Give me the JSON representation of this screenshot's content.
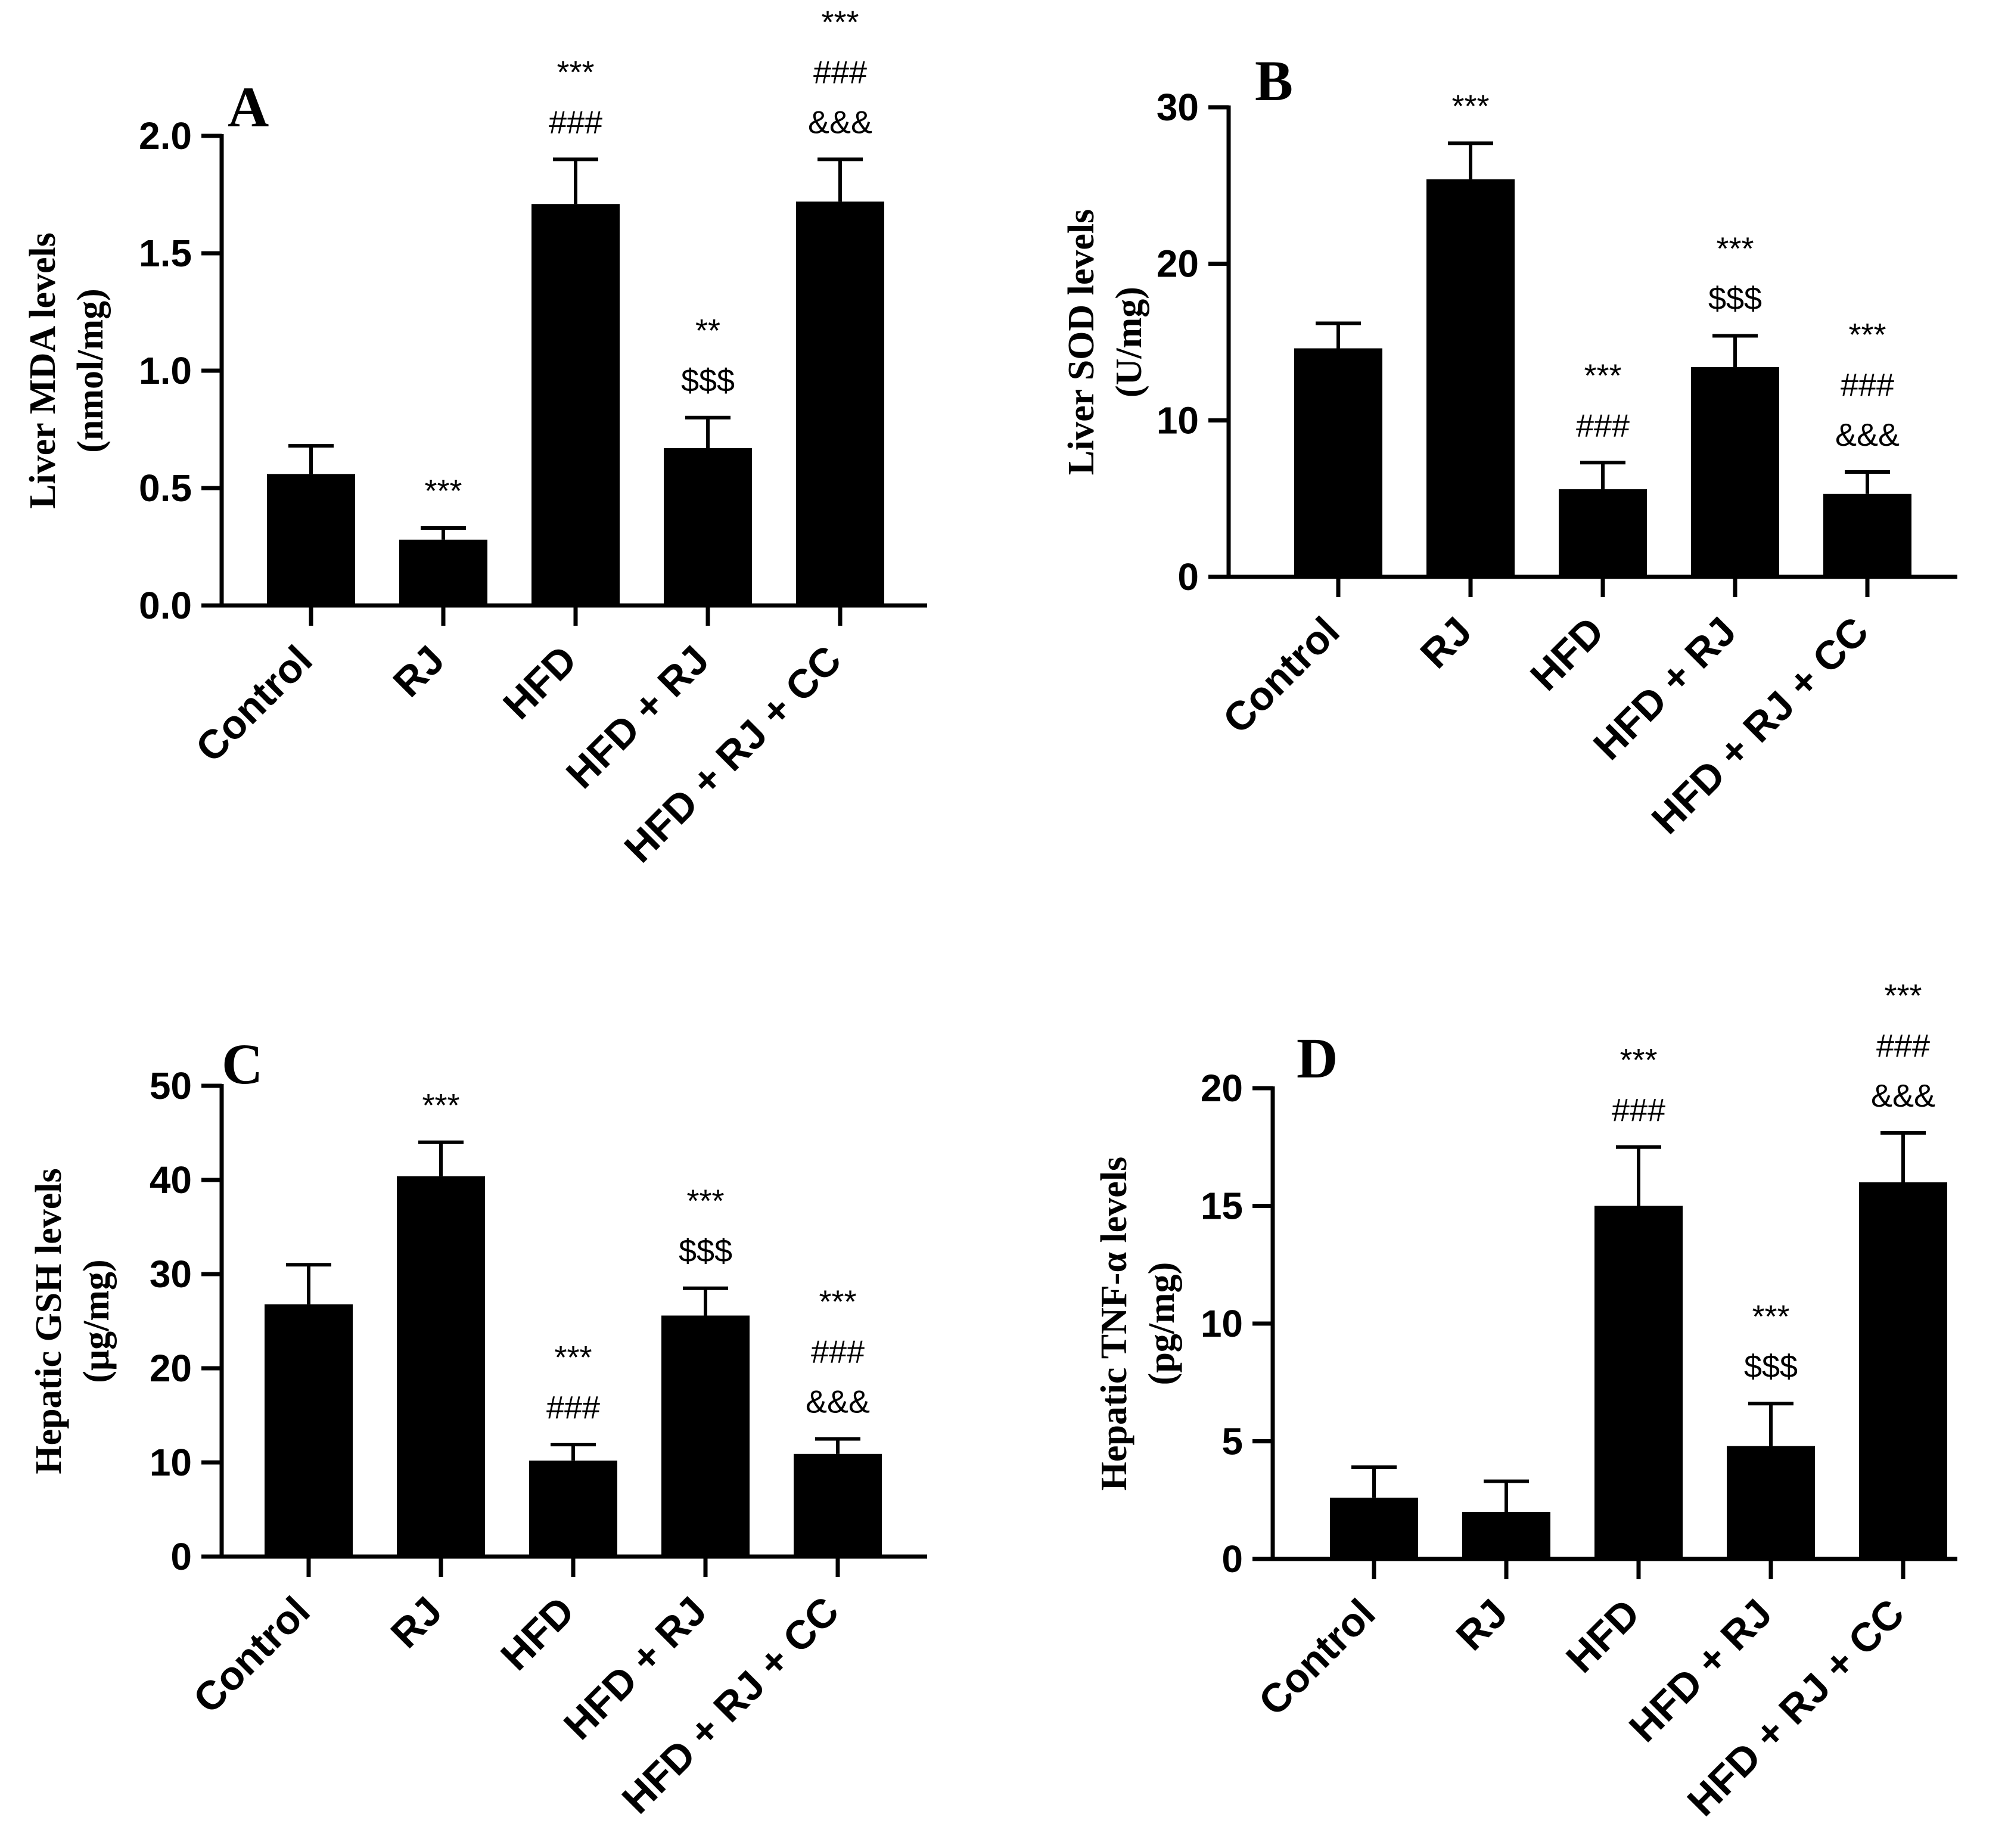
{
  "figure_label": "Four-panel bar chart figure",
  "chart_data": [
    {
      "panel": "A",
      "type": "bar",
      "categories": [
        "Control",
        "RJ",
        "HFD",
        "HFD + RJ",
        "HFD + RJ + CC"
      ],
      "values": [
        0.56,
        0.28,
        1.71,
        0.67,
        1.72
      ],
      "errors": [
        0.12,
        0.05,
        0.19,
        0.13,
        0.18
      ],
      "annotations": [
        [],
        [
          "***"
        ],
        [
          "***",
          "###"
        ],
        [
          "**",
          "$$$"
        ],
        [
          "***",
          "###",
          "&&&"
        ]
      ],
      "ylabel_lines": [
        "Liver MDA levels",
        "(nmol/mg)"
      ],
      "ylim": [
        0,
        2.0
      ],
      "yticks": [
        0.0,
        0.5,
        1.0,
        1.5,
        2.0
      ],
      "ytick_labels": [
        "0.0",
        "0.5",
        "1.0",
        "1.5",
        "2.0"
      ],
      "bar_color": "#000000"
    },
    {
      "panel": "B",
      "type": "bar",
      "categories": [
        "Control",
        "RJ",
        "HFD",
        "HFD + RJ",
        "HFD + RJ + CC"
      ],
      "values": [
        14.6,
        25.4,
        5.6,
        13.4,
        5.3
      ],
      "errors": [
        1.6,
        2.3,
        1.7,
        2.0,
        1.4
      ],
      "annotations": [
        [],
        [
          "***"
        ],
        [
          "***",
          "###"
        ],
        [
          "***",
          "$$$"
        ],
        [
          "***",
          "###",
          "&&&"
        ]
      ],
      "ylabel_lines": [
        "Liver SOD levels",
        "(U/mg)"
      ],
      "ylim": [
        0,
        30
      ],
      "yticks": [
        0,
        10,
        20,
        30
      ],
      "ytick_labels": [
        "0",
        "10",
        "20",
        "30"
      ],
      "bar_color": "#000000"
    },
    {
      "panel": "C",
      "type": "bar",
      "categories": [
        "Control",
        "RJ",
        "HFD",
        "HFD + RJ",
        "HFD + RJ + CC"
      ],
      "values": [
        26.8,
        40.4,
        10.2,
        25.6,
        10.9
      ],
      "errors": [
        4.2,
        3.6,
        1.7,
        2.9,
        1.6
      ],
      "annotations": [
        [],
        [
          "***"
        ],
        [
          "***",
          "###"
        ],
        [
          "***",
          "$$$"
        ],
        [
          "***",
          "###",
          "&&&"
        ]
      ],
      "ylabel_lines": [
        "Hepatic GSH levels",
        "(μg/mg)"
      ],
      "ylim": [
        0,
        50
      ],
      "yticks": [
        0,
        10,
        20,
        30,
        40,
        50
      ],
      "ytick_labels": [
        "0",
        "10",
        "20",
        "30",
        "40",
        "50"
      ],
      "bar_color": "#000000"
    },
    {
      "panel": "D",
      "type": "bar",
      "categories": [
        "Control",
        "RJ",
        "HFD",
        "HFD + RJ",
        "HFD + RJ + CC"
      ],
      "values": [
        2.6,
        2.0,
        15.0,
        4.8,
        16.0
      ],
      "errors": [
        1.3,
        1.3,
        2.5,
        1.8,
        2.1
      ],
      "annotations": [
        [],
        [],
        [
          "***",
          "###"
        ],
        [
          "***",
          "$$$"
        ],
        [
          "***",
          "###",
          "&&&"
        ]
      ],
      "ylabel_lines": [
        "Hepatic TNF-α levels",
        "(pg/mg)"
      ],
      "ylim": [
        0,
        20
      ],
      "yticks": [
        0,
        5,
        10,
        15,
        20
      ],
      "ytick_labels": [
        "0",
        "5",
        "10",
        "15",
        "20"
      ],
      "bar_color": "#000000"
    }
  ]
}
